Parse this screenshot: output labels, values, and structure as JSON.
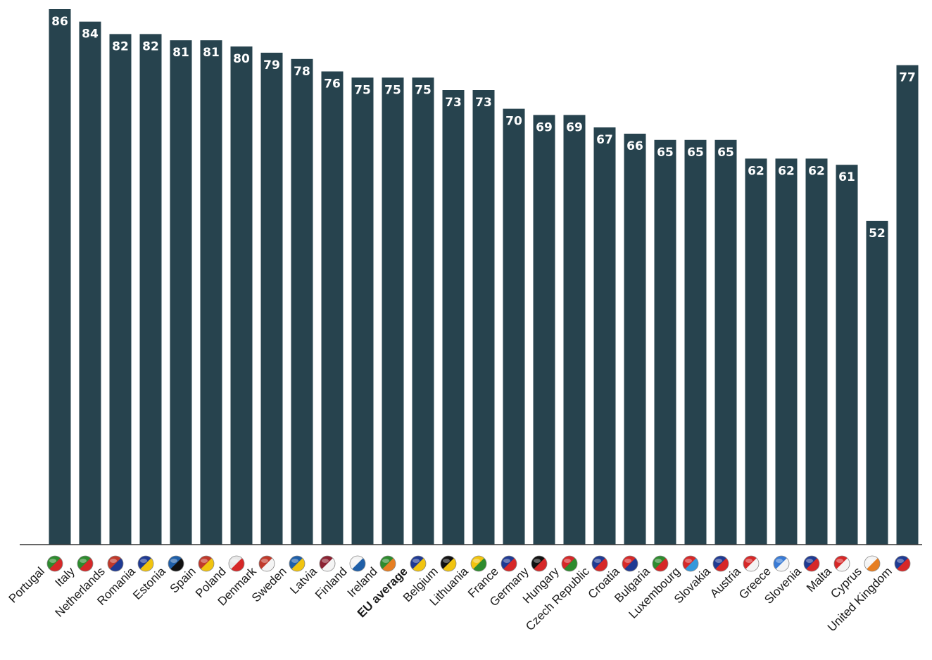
{
  "chart_data": {
    "type": "bar",
    "title": "",
    "xlabel": "",
    "ylabel": "",
    "ylim": [
      0,
      86
    ],
    "grid": false,
    "bar_color": "#27434e",
    "highlight_category": "EU average",
    "categories": [
      "Portugal",
      "Italy",
      "Netherlands",
      "Romania",
      "Estonia",
      "Spain",
      "Poland",
      "Denmark",
      "Sweden",
      "Latvia",
      "Finland",
      "Ireland",
      "EU average",
      "Belgium",
      "Lithuania",
      "France",
      "Germany",
      "Hungary",
      "Czech Republic",
      "Croatia",
      "Bulgaria",
      "Luxembourg",
      "Slovakia",
      "Austria",
      "Greece",
      "Slovenia",
      "Malta",
      "Cyprus",
      "United Kingdom"
    ],
    "values": [
      86,
      84,
      82,
      82,
      81,
      81,
      80,
      79,
      78,
      76,
      75,
      75,
      75,
      73,
      73,
      70,
      69,
      69,
      67,
      66,
      65,
      65,
      65,
      62,
      62,
      62,
      61,
      52,
      77
    ],
    "flag_colors": [
      [
        "#2e8b2e",
        "#d62828"
      ],
      [
        "#2e8b2e",
        "#d62828"
      ],
      [
        "#c0392b",
        "#1f3a93"
      ],
      [
        "#1f3a93",
        "#f1c40f"
      ],
      [
        "#1f5fa8",
        "#111111"
      ],
      [
        "#c0392b",
        "#f1c40f"
      ],
      [
        "#e8e8e8",
        "#d62828"
      ],
      [
        "#c0392b",
        "#f4f4f4"
      ],
      [
        "#1f5fa8",
        "#f1c40f"
      ],
      [
        "#8b2232",
        "#f4f4f4"
      ],
      [
        "#f4f4f4",
        "#1f5fa8"
      ],
      [
        "#2e8b2e",
        "#e67e22"
      ],
      [
        "#1f3a93",
        "#f1c40f"
      ],
      [
        "#111111",
        "#f1c40f"
      ],
      [
        "#f1c40f",
        "#2e8b2e"
      ],
      [
        "#1f3a93",
        "#d62828"
      ],
      [
        "#111111",
        "#d62828"
      ],
      [
        "#d62828",
        "#2e8b2e"
      ],
      [
        "#1f3a93",
        "#d62828"
      ],
      [
        "#d62828",
        "#1f3a93"
      ],
      [
        "#2e8b2e",
        "#d62828"
      ],
      [
        "#d62828",
        "#3498db"
      ],
      [
        "#1f3a93",
        "#d62828"
      ],
      [
        "#d62828",
        "#f4f4f4"
      ],
      [
        "#3a7bd5",
        "#f4f4f4"
      ],
      [
        "#1f3a93",
        "#d62828"
      ],
      [
        "#d62828",
        "#f4f4f4"
      ],
      [
        "#f4f4f4",
        "#e67e22"
      ],
      [
        "#1f3a93",
        "#d62828"
      ]
    ]
  }
}
